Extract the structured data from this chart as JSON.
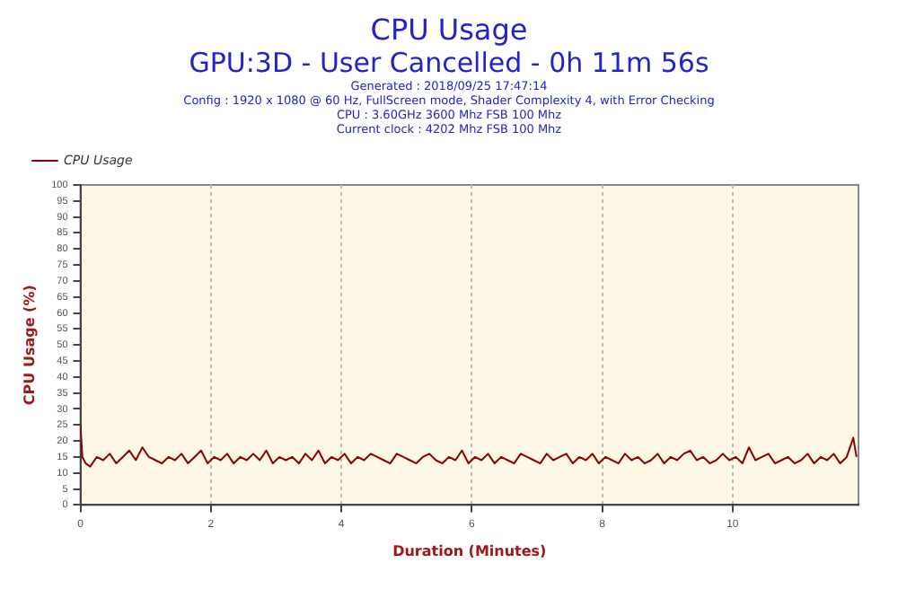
{
  "chart_data": {
    "type": "line",
    "title": "CPU Usage",
    "subtitle": "GPU:3D - User Cancelled - 0h 11m 56s",
    "annotations": [
      "Generated : 2018/09/25 17:47:14",
      "Config : 1920 x 1080 @ 60 Hz, FullScreen mode, Shader Complexity 4, with Error Checking",
      "CPU : 3.60GHz 3600 Mhz FSB 100 Mhz",
      "Current clock : 4202 Mhz FSB 100 Mhz"
    ],
    "xlabel": "Duration (Minutes)",
    "ylabel": "CPU Usage (%)",
    "series": [
      {
        "name": "CPU Usage",
        "color": "#8b0000",
        "x": [
          0,
          0.03,
          0.08,
          0.15,
          0.25,
          0.35,
          0.45,
          0.55,
          0.65,
          0.75,
          0.85,
          0.95,
          1.05,
          1.15,
          1.25,
          1.35,
          1.45,
          1.55,
          1.65,
          1.75,
          1.85,
          1.95,
          2.05,
          2.15,
          2.25,
          2.35,
          2.45,
          2.55,
          2.65,
          2.75,
          2.85,
          2.95,
          3.05,
          3.15,
          3.25,
          3.35,
          3.45,
          3.55,
          3.65,
          3.75,
          3.85,
          3.95,
          4.05,
          4.15,
          4.25,
          4.35,
          4.45,
          4.55,
          4.65,
          4.75,
          4.85,
          4.95,
          5.05,
          5.15,
          5.25,
          5.35,
          5.45,
          5.55,
          5.65,
          5.75,
          5.85,
          5.95,
          6.05,
          6.15,
          6.25,
          6.35,
          6.45,
          6.55,
          6.65,
          6.75,
          6.85,
          6.95,
          7.05,
          7.15,
          7.25,
          7.35,
          7.45,
          7.55,
          7.65,
          7.75,
          7.85,
          7.95,
          8.05,
          8.15,
          8.25,
          8.35,
          8.45,
          8.55,
          8.65,
          8.75,
          8.85,
          8.95,
          9.05,
          9.15,
          9.25,
          9.35,
          9.45,
          9.55,
          9.65,
          9.75,
          9.85,
          9.95,
          10.05,
          10.15,
          10.25,
          10.35,
          10.45,
          10.55,
          10.65,
          10.75,
          10.85,
          10.95,
          11.05,
          11.15,
          11.25,
          11.35,
          11.45,
          11.55,
          11.65,
          11.75,
          11.85,
          11.9
        ],
        "values": [
          25,
          15,
          13,
          12,
          15,
          14,
          16,
          13,
          15,
          17,
          14,
          18,
          15,
          14,
          13,
          15,
          14,
          16,
          13,
          15,
          17,
          13,
          15,
          14,
          16,
          13,
          15,
          14,
          16,
          14,
          17,
          13,
          15,
          14,
          15,
          13,
          16,
          14,
          17,
          13,
          15,
          14,
          16,
          13,
          15,
          14,
          16,
          15,
          14,
          13,
          16,
          15,
          14,
          13,
          15,
          16,
          14,
          13,
          15,
          14,
          17,
          13,
          15,
          14,
          16,
          13,
          15,
          14,
          13,
          16,
          15,
          14,
          13,
          16,
          14,
          15,
          16,
          13,
          15,
          14,
          16,
          13,
          15,
          14,
          13,
          16,
          14,
          15,
          13,
          14,
          16,
          13,
          15,
          14,
          16,
          17,
          14,
          15,
          13,
          14,
          16,
          14,
          15,
          13,
          18,
          14,
          15,
          16,
          13,
          14,
          15,
          13,
          14,
          16,
          13,
          15,
          14,
          16,
          13,
          15,
          21,
          15
        ]
      }
    ],
    "xlim": [
      0,
      11.93
    ],
    "xticks": [
      0,
      2,
      4,
      6,
      8,
      10
    ],
    "ylim": [
      0,
      100
    ],
    "yticks": [
      0,
      5,
      10,
      15,
      20,
      25,
      30,
      35,
      40,
      45,
      50,
      55,
      60,
      65,
      70,
      75,
      80,
      85,
      90,
      95,
      100
    ],
    "grid": "x",
    "legend": "top left",
    "marker": "none",
    "line_style": "solid"
  }
}
